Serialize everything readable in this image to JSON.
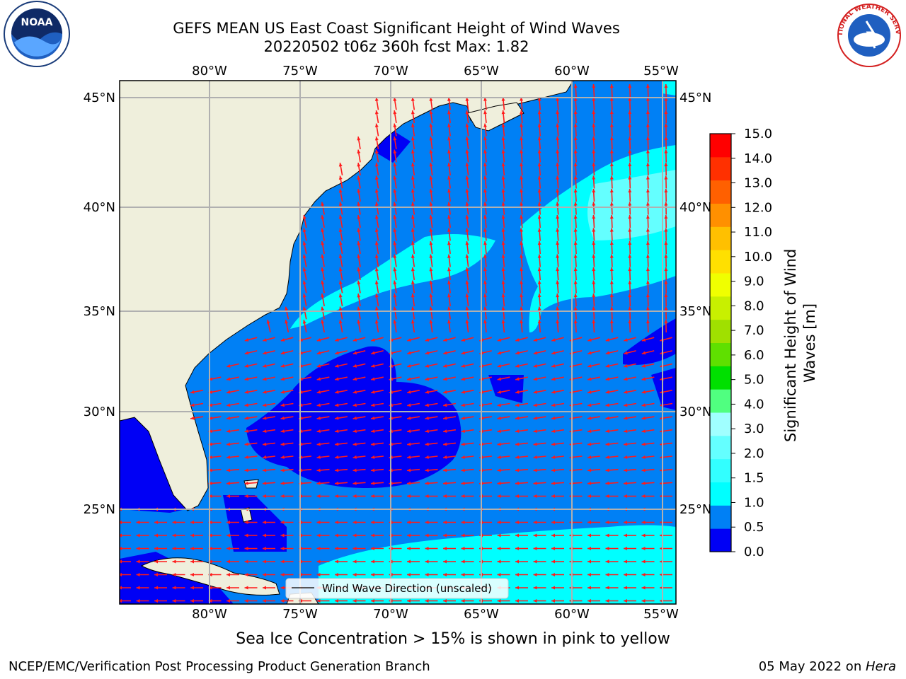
{
  "title": {
    "line1": "GEFS MEAN US East Coast Significant Height of Wind Waves",
    "line2": "20220502 t06z 360h fcst   Max: 1.82"
  },
  "map": {
    "lon_labels": [
      "80°W",
      "75°W",
      "70°W",
      "65°W",
      "60°W",
      "55°W"
    ],
    "lat_labels": [
      "45°N",
      "40°N",
      "35°N",
      "30°N",
      "25°N"
    ],
    "legend_label": "Wind Wave Direction (unscaled)",
    "land_color": "#efefdc",
    "arrow_color": "#ff1a1a"
  },
  "colorbar": {
    "label": "Significant Height of Wind Waves [m]",
    "ticks": [
      "0.0",
      "0.5",
      "1.0",
      "1.5",
      "2.0",
      "3.0",
      "4.0",
      "5.0",
      "6.0",
      "7.0",
      "8.0",
      "9.0",
      "10.0",
      "11.0",
      "12.0",
      "13.0",
      "14.0",
      "15.0"
    ],
    "colors": [
      "#0000f5",
      "#0080f5",
      "#00ffff",
      "#32ffff",
      "#64ffff",
      "#a0ffff",
      "#50ff80",
      "#00e000",
      "#5fe000",
      "#a0e000",
      "#c8f000",
      "#f0ff00",
      "#ffe000",
      "#ffc000",
      "#ff9000",
      "#ff6000",
      "#ff3000",
      "#ff0000"
    ]
  },
  "sea_ice_note": "Sea Ice Concentration > 15% is shown in pink to yellow",
  "footer": {
    "left": "NCEP/EMC/Verification Post Processing Product Generation Branch",
    "right_date": "05 May 2022 on ",
    "right_host": "Hera"
  },
  "logos": {
    "noaa_text": "NOAA",
    "nws_text": "NATIONAL WEATHER SERVICE"
  }
}
